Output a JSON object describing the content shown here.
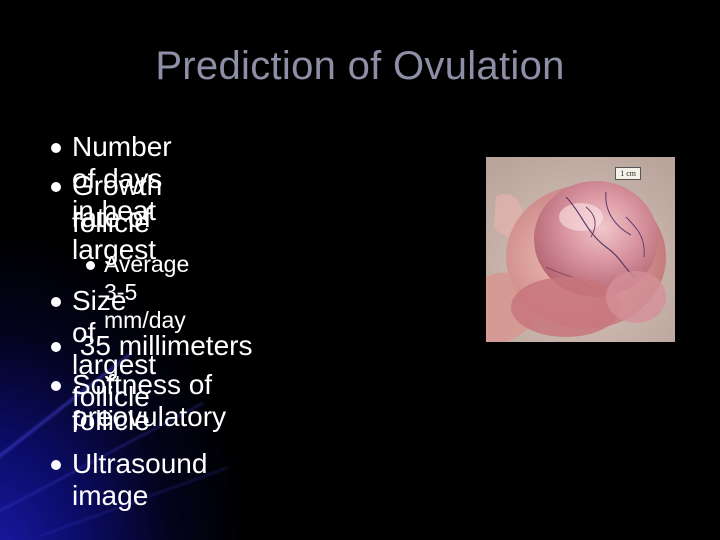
{
  "slide": {
    "title": "Prediction of Ovulation",
    "bullets": [
      {
        "text": "Number of days in heat",
        "level": 1
      },
      {
        "text": "Growth rate of largest",
        "level": 1
      },
      {
        "text": "follicle",
        "level": 1,
        "continuation": true
      },
      {
        "text": "Average 3-5 mm/day",
        "level": 2
      },
      {
        "text": "Size of largest follicle",
        "level": 1
      },
      {
        "text": " 35 millimeters",
        "level": 1
      },
      {
        "text": "Softness of preovulatory",
        "level": 1
      },
      {
        "text": "follicle",
        "level": 1,
        "continuation": true
      },
      {
        "text": "Ultrasound image",
        "level": 1
      }
    ],
    "photo": {
      "scale_label": "1 cm",
      "subject": "ovary with preovulatory follicle"
    }
  },
  "colors": {
    "background": "#000000",
    "title": "#8e8ea6",
    "text": "#ffffff",
    "glow": "#1a1aa8"
  }
}
